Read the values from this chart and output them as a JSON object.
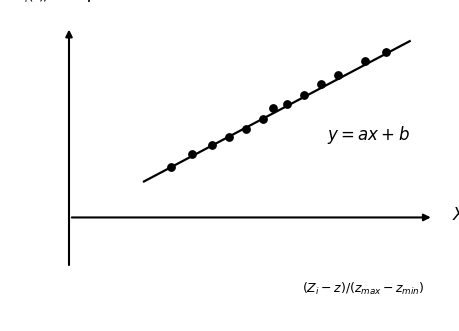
{
  "ylabel_text": "$dY_i(t)/dt$",
  "y_axis_label": "$Y$",
  "x_axis_label": "$X$",
  "x_bottom_label": "$(Z_i-z)/(z_{max}-z_{min})$",
  "equation_label": "$y=ax+b$",
  "scatter_x": [
    0.3,
    0.36,
    0.42,
    0.47,
    0.52,
    0.57,
    0.6,
    0.64,
    0.69,
    0.74,
    0.79,
    0.87,
    0.93
  ],
  "scatter_y": [
    0.28,
    0.35,
    0.4,
    0.45,
    0.49,
    0.55,
    0.61,
    0.63,
    0.68,
    0.74,
    0.79,
    0.87,
    0.92
  ],
  "line_x_start": 0.22,
  "line_x_end": 1.0,
  "line_y_start": 0.2,
  "line_y_end": 0.98,
  "scatter_color": "#000000",
  "scatter_size": 28,
  "line_color": "#000000",
  "line_width": 1.6,
  "background_color": "#ffffff",
  "eq_fontsize": 12,
  "axis_label_fontsize": 12,
  "ylabel_fontsize": 10,
  "xlim": [
    0.0,
    1.08
  ],
  "ylim": [
    -0.3,
    1.08
  ]
}
